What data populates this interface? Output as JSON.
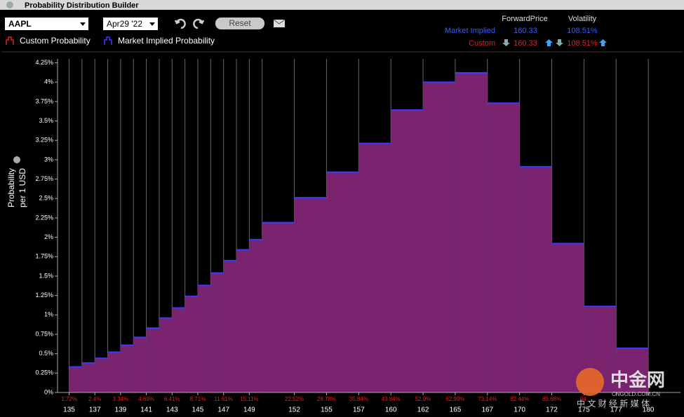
{
  "window_title": "Probability Distribution Builder",
  "toolbar": {
    "symbol": "AAPL",
    "expiry": "Apr29 '22",
    "reset": "Reset"
  },
  "summary": {
    "headers": [
      "ForwardPrice",
      "Volatility"
    ],
    "rows": [
      [
        "Market Implied",
        "160.33",
        "108.51%"
      ],
      [
        "Custom",
        "160.33",
        "108.51%"
      ]
    ]
  },
  "watermark": {
    "brand": "中金网",
    "site": "CNGOLD.COM.CN",
    "slogan": "中 文 财 经 新 媒 体"
  },
  "chart_data": {
    "type": "histogram",
    "ylabel": [
      "Probability",
      "per 1 USD"
    ],
    "bins": [
      135,
      136,
      137,
      138,
      139,
      140,
      141,
      142,
      143,
      144,
      145,
      146,
      147,
      148,
      149,
      150,
      152.5,
      155,
      157.5,
      160,
      162.5,
      165,
      167.5,
      170,
      172.5,
      175,
      177.5,
      180
    ],
    "series": [
      {
        "name": "Custom Probability",
        "color": "#7a2470",
        "values": [
          0.33,
          0.38,
          0.44,
          0.52,
          0.61,
          0.71,
          0.83,
          0.96,
          1.09,
          1.24,
          1.38,
          1.54,
          1.7,
          1.84,
          1.97,
          2.19,
          2.51,
          2.84,
          3.21,
          3.64,
          4.0,
          4.12,
          3.73,
          2.91,
          1.92,
          1.11,
          0.57
        ]
      },
      {
        "name": "Market Implied Probability",
        "color": "#3a3aff",
        "values": [
          0.33,
          0.38,
          0.44,
          0.52,
          0.61,
          0.71,
          0.83,
          0.96,
          1.09,
          1.24,
          1.38,
          1.54,
          1.7,
          1.84,
          1.97,
          2.19,
          2.51,
          2.84,
          3.21,
          3.64,
          4.0,
          4.12,
          3.73,
          2.91,
          1.92,
          1.11,
          0.57
        ]
      }
    ],
    "xlim": [
      134.1,
      182.5
    ],
    "xticks": [
      135,
      137,
      139,
      141,
      143,
      145,
      147,
      149,
      {
        "value": 152.5,
        "label": "152"
      },
      155,
      {
        "value": 157.5,
        "label": "157"
      },
      160,
      {
        "value": 162.5,
        "label": "162"
      },
      165,
      {
        "value": 167.5,
        "label": "167"
      },
      170,
      {
        "value": 172.5,
        "label": "172"
      },
      175,
      {
        "value": 177.5,
        "label": "177"
      },
      180
    ],
    "cumulative_labels": [
      "1.72%",
      "2.4%",
      "3.34%",
      "4.69%",
      "6.41%",
      "8.71%",
      "11.61%",
      "15.11%",
      "22.52%",
      "28.78%",
      "35.84%",
      "43.84%",
      "52.9%",
      "62.99%",
      "73.14%",
      "82.44%",
      "89.68%",
      "94.",
      null,
      null
    ],
    "ylim": [
      0,
      4.3
    ],
    "yticks": [
      {
        "value": 0,
        "label": "0%"
      },
      {
        "value": 0.25,
        "label": "0.25%"
      },
      {
        "value": 0.5,
        "label": "0.5%"
      },
      {
        "value": 0.75,
        "label": "0.75%"
      },
      {
        "value": 1,
        "label": "1%"
      },
      {
        "value": 1.25,
        "label": "1.25%"
      },
      {
        "value": 1.5,
        "label": "1.5%"
      },
      {
        "value": 1.75,
        "label": "1.75%"
      },
      {
        "value": 2,
        "label": "2%"
      },
      {
        "value": 2.25,
        "label": "2.25%"
      },
      {
        "value": 2.5,
        "label": "2.5%"
      },
      {
        "value": 2.75,
        "label": "2.75%"
      },
      {
        "value": 3,
        "label": "3%"
      },
      {
        "value": 3.25,
        "label": "3.25%"
      },
      {
        "value": 3.5,
        "label": "3.5%"
      },
      {
        "value": 3.75,
        "label": "3.75%"
      },
      {
        "value": 4,
        "label": "4%"
      },
      {
        "value": 4.25,
        "label": "4.25%"
      }
    ],
    "grid": true
  }
}
